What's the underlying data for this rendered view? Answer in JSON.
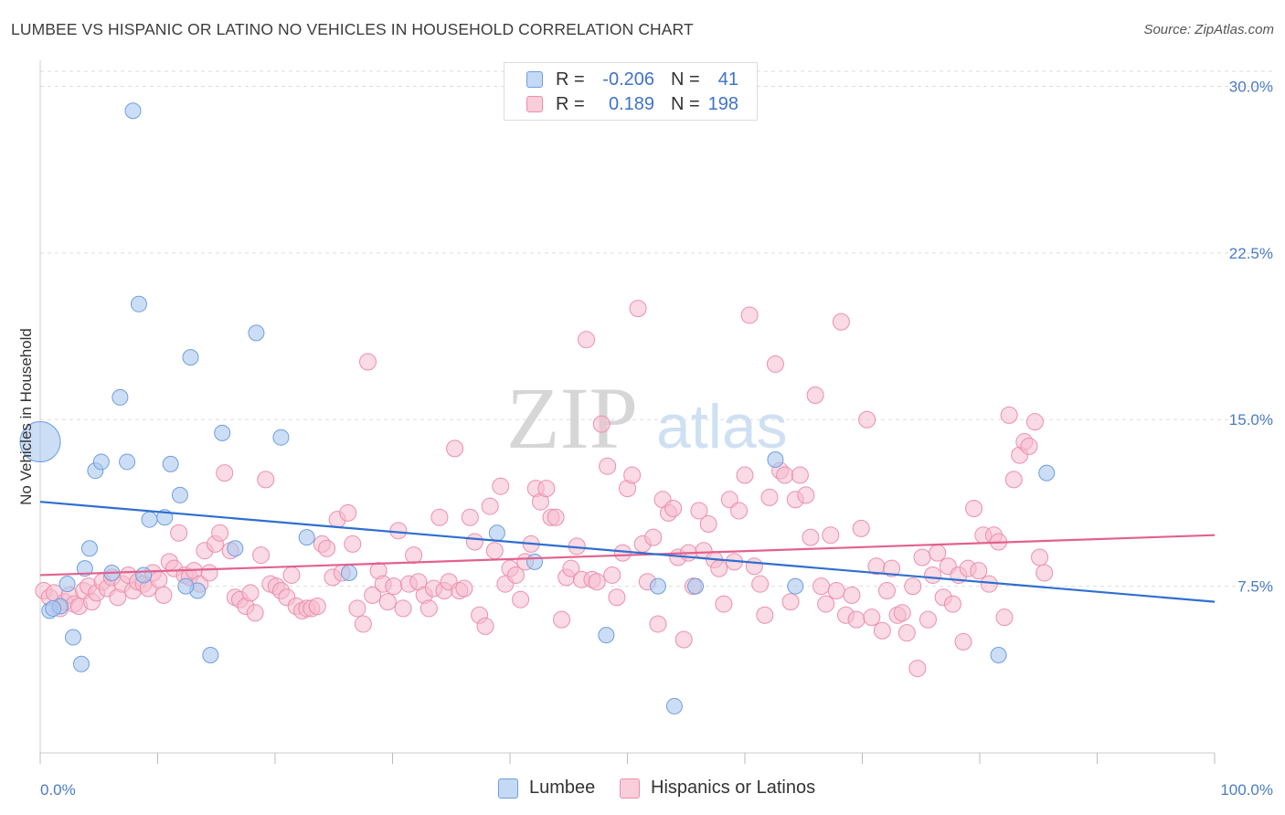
{
  "title": "LUMBEE VS HISPANIC OR LATINO NO VEHICLES IN HOUSEHOLD CORRELATION CHART",
  "source": "Source: ZipAtlas.com",
  "watermark": {
    "zip": "ZIP",
    "atlas": "atlas"
  },
  "legend": {
    "rows": [
      {
        "r_label": "R =",
        "r_value": "-0.206",
        "n_label": "N =",
        "n_value": "41"
      },
      {
        "r_label": "R =",
        "r_value": "0.189",
        "n_label": "N =",
        "n_value": "198"
      }
    ]
  },
  "bottom_legend": {
    "lumbee": "Lumbee",
    "hispanic": "Hispanics or Latinos"
  },
  "colors": {
    "lumbee_fill": "#aac8ee",
    "lumbee_stroke": "#6f9ee0",
    "lumbee_line": "#2f6fcf",
    "hispanic_fill": "#f6bccd",
    "hispanic_stroke": "#ec8fac",
    "hispanic_line": "#e2618e",
    "tick_text": "#4a7cc4",
    "grid": "#dddddd"
  },
  "chart_data": {
    "type": "scatter",
    "title": "LUMBEE VS HISPANIC OR LATINO NO VEHICLES IN HOUSEHOLD CORRELATION CHART",
    "xlabel": "",
    "ylabel": "No Vehicles in Household",
    "xlim": [
      0,
      100
    ],
    "ylim": [
      0,
      31.5
    ],
    "x_ticks": [
      "0.0%",
      "100.0%"
    ],
    "y_ticks": [
      {
        "value": 7.5,
        "label": "7.5%"
      },
      {
        "value": 15.0,
        "label": "15.0%"
      },
      {
        "value": 22.5,
        "label": "22.5%"
      },
      {
        "value": 30.0,
        "label": "30.0%"
      }
    ],
    "legend_position": "top-center",
    "grid": true,
    "series": [
      {
        "name": "Lumbee",
        "r": -0.206,
        "n": 41,
        "trend": {
          "x": [
            0,
            100
          ],
          "y": [
            11.3,
            6.8
          ]
        },
        "points": [
          [
            0,
            14.0
          ],
          [
            0.8,
            6.4
          ],
          [
            1.7,
            6.6
          ],
          [
            2.3,
            7.6
          ],
          [
            2.8,
            5.2
          ],
          [
            3.5,
            4.0
          ],
          [
            3.8,
            8.3
          ],
          [
            4.2,
            9.2
          ],
          [
            4.7,
            12.7
          ],
          [
            5.2,
            13.1
          ],
          [
            6.1,
            8.1
          ],
          [
            6.8,
            16.0
          ],
          [
            7.4,
            13.1
          ],
          [
            7.9,
            28.9
          ],
          [
            8.4,
            20.2
          ],
          [
            8.8,
            8.0
          ],
          [
            9.3,
            10.5
          ],
          [
            10.6,
            10.6
          ],
          [
            11.1,
            13.0
          ],
          [
            11.9,
            11.6
          ],
          [
            12.8,
            17.8
          ],
          [
            13.4,
            7.3
          ],
          [
            14.5,
            4.4
          ],
          [
            15.5,
            14.4
          ],
          [
            16.6,
            9.2
          ],
          [
            18.4,
            18.9
          ],
          [
            20.5,
            14.2
          ],
          [
            22.7,
            9.7
          ],
          [
            26.3,
            8.1
          ],
          [
            38.9,
            9.9
          ],
          [
            42.1,
            8.6
          ],
          [
            48.2,
            5.3
          ],
          [
            52.6,
            7.5
          ],
          [
            54.0,
            2.1
          ],
          [
            55.8,
            7.5
          ],
          [
            62.6,
            13.2
          ],
          [
            64.3,
            7.5
          ],
          [
            81.6,
            4.4
          ],
          [
            85.7,
            12.6
          ],
          [
            12.4,
            7.5
          ],
          [
            1.1,
            6.5
          ]
        ]
      },
      {
        "name": "Hispanics or Latinos",
        "r": 0.189,
        "n": 198,
        "trend": {
          "x": [
            0,
            100
          ],
          "y": [
            8.0,
            9.8
          ]
        },
        "points": [
          [
            0.3,
            7.3
          ],
          [
            0.8,
            7.0
          ],
          [
            1.2,
            7.2
          ],
          [
            1.7,
            6.5
          ],
          [
            2.1,
            6.8
          ],
          [
            2.5,
            7.1
          ],
          [
            2.9,
            6.7
          ],
          [
            3.3,
            6.6
          ],
          [
            3.7,
            7.3
          ],
          [
            4.1,
            7.5
          ],
          [
            4.4,
            6.8
          ],
          [
            4.8,
            7.2
          ],
          [
            5.3,
            7.7
          ],
          [
            5.7,
            7.4
          ],
          [
            6.1,
            7.9
          ],
          [
            6.6,
            7.0
          ],
          [
            7.0,
            7.6
          ],
          [
            7.5,
            8.0
          ],
          [
            7.9,
            7.3
          ],
          [
            8.3,
            7.7
          ],
          [
            8.8,
            7.6
          ],
          [
            9.2,
            7.4
          ],
          [
            9.6,
            8.1
          ],
          [
            10.1,
            7.8
          ],
          [
            10.5,
            7.1
          ],
          [
            11.0,
            8.6
          ],
          [
            11.4,
            8.3
          ],
          [
            11.8,
            9.9
          ],
          [
            12.3,
            8.0
          ],
          [
            12.7,
            7.9
          ],
          [
            13.1,
            8.2
          ],
          [
            13.6,
            7.6
          ],
          [
            14.0,
            9.1
          ],
          [
            14.4,
            8.1
          ],
          [
            14.9,
            9.4
          ],
          [
            15.3,
            9.9
          ],
          [
            15.7,
            12.6
          ],
          [
            16.2,
            9.1
          ],
          [
            16.6,
            7.0
          ],
          [
            17.0,
            6.9
          ],
          [
            17.5,
            6.6
          ],
          [
            17.9,
            7.2
          ],
          [
            18.3,
            6.3
          ],
          [
            18.8,
            8.9
          ],
          [
            19.2,
            12.3
          ],
          [
            19.6,
            7.6
          ],
          [
            20.1,
            7.5
          ],
          [
            20.5,
            7.3
          ],
          [
            21.0,
            7.0
          ],
          [
            21.4,
            8.0
          ],
          [
            21.8,
            6.6
          ],
          [
            22.3,
            6.4
          ],
          [
            22.7,
            6.5
          ],
          [
            23.1,
            6.5
          ],
          [
            23.6,
            6.6
          ],
          [
            24.0,
            9.4
          ],
          [
            24.4,
            9.2
          ],
          [
            24.9,
            7.9
          ],
          [
            25.3,
            10.5
          ],
          [
            25.7,
            8.1
          ],
          [
            26.2,
            10.8
          ],
          [
            26.6,
            9.4
          ],
          [
            27.0,
            6.5
          ],
          [
            27.5,
            5.8
          ],
          [
            27.9,
            17.6
          ],
          [
            28.3,
            7.1
          ],
          [
            28.8,
            8.2
          ],
          [
            29.2,
            7.6
          ],
          [
            29.6,
            6.8
          ],
          [
            30.1,
            7.5
          ],
          [
            30.5,
            10.0
          ],
          [
            30.9,
            6.5
          ],
          [
            31.4,
            7.6
          ],
          [
            31.8,
            8.9
          ],
          [
            32.2,
            7.7
          ],
          [
            32.7,
            7.1
          ],
          [
            33.1,
            6.5
          ],
          [
            33.5,
            7.4
          ],
          [
            34.0,
            10.6
          ],
          [
            34.4,
            7.3
          ],
          [
            34.8,
            7.7
          ],
          [
            35.3,
            13.7
          ],
          [
            35.7,
            7.3
          ],
          [
            36.1,
            7.4
          ],
          [
            36.6,
            10.6
          ],
          [
            37.0,
            9.5
          ],
          [
            37.4,
            6.2
          ],
          [
            37.9,
            5.7
          ],
          [
            38.3,
            11.1
          ],
          [
            38.7,
            9.1
          ],
          [
            39.2,
            12.0
          ],
          [
            39.6,
            7.6
          ],
          [
            40.0,
            8.3
          ],
          [
            40.5,
            8.0
          ],
          [
            40.9,
            6.9
          ],
          [
            41.3,
            8.6
          ],
          [
            41.8,
            9.4
          ],
          [
            42.2,
            11.9
          ],
          [
            42.6,
            11.3
          ],
          [
            43.1,
            11.9
          ],
          [
            43.5,
            10.6
          ],
          [
            43.9,
            10.6
          ],
          [
            44.4,
            6.0
          ],
          [
            44.8,
            7.9
          ],
          [
            45.2,
            8.3
          ],
          [
            45.7,
            9.3
          ],
          [
            46.1,
            7.8
          ],
          [
            46.5,
            18.6
          ],
          [
            47.0,
            7.8
          ],
          [
            47.4,
            7.7
          ],
          [
            47.8,
            14.8
          ],
          [
            48.3,
            12.9
          ],
          [
            48.7,
            8.0
          ],
          [
            49.1,
            7.0
          ],
          [
            49.6,
            9.0
          ],
          [
            50.0,
            11.9
          ],
          [
            50.4,
            12.5
          ],
          [
            50.9,
            20.0
          ],
          [
            51.3,
            9.4
          ],
          [
            51.7,
            7.7
          ],
          [
            52.2,
            9.7
          ],
          [
            52.6,
            5.8
          ],
          [
            53.0,
            11.4
          ],
          [
            53.5,
            10.8
          ],
          [
            53.9,
            11.0
          ],
          [
            54.3,
            8.8
          ],
          [
            54.8,
            5.1
          ],
          [
            55.2,
            9.0
          ],
          [
            55.6,
            7.5
          ],
          [
            56.1,
            10.9
          ],
          [
            56.5,
            9.1
          ],
          [
            56.9,
            10.3
          ],
          [
            57.4,
            8.7
          ],
          [
            57.8,
            8.3
          ],
          [
            58.2,
            6.7
          ],
          [
            58.7,
            11.4
          ],
          [
            59.1,
            8.6
          ],
          [
            59.5,
            10.9
          ],
          [
            60.0,
            12.5
          ],
          [
            60.4,
            19.7
          ],
          [
            60.8,
            8.4
          ],
          [
            61.3,
            7.6
          ],
          [
            61.7,
            6.2
          ],
          [
            62.1,
            11.5
          ],
          [
            62.6,
            17.5
          ],
          [
            63.0,
            12.7
          ],
          [
            63.4,
            12.5
          ],
          [
            63.9,
            6.8
          ],
          [
            64.3,
            11.4
          ],
          [
            64.7,
            12.5
          ],
          [
            65.2,
            11.6
          ],
          [
            65.6,
            9.7
          ],
          [
            66.0,
            16.1
          ],
          [
            66.5,
            7.5
          ],
          [
            66.9,
            6.7
          ],
          [
            67.3,
            9.8
          ],
          [
            67.8,
            7.3
          ],
          [
            68.2,
            19.4
          ],
          [
            68.6,
            6.2
          ],
          [
            69.1,
            7.1
          ],
          [
            69.5,
            6.0
          ],
          [
            69.9,
            10.1
          ],
          [
            70.4,
            15.0
          ],
          [
            70.8,
            6.1
          ],
          [
            71.2,
            8.4
          ],
          [
            71.7,
            5.5
          ],
          [
            72.1,
            7.3
          ],
          [
            72.5,
            8.3
          ],
          [
            73.0,
            6.2
          ],
          [
            73.4,
            6.3
          ],
          [
            73.8,
            5.4
          ],
          [
            74.3,
            7.5
          ],
          [
            74.7,
            3.8
          ],
          [
            75.1,
            8.8
          ],
          [
            75.6,
            6.0
          ],
          [
            76.0,
            8.0
          ],
          [
            76.4,
            9.0
          ],
          [
            76.9,
            7.0
          ],
          [
            77.3,
            8.4
          ],
          [
            77.7,
            6.7
          ],
          [
            78.2,
            8.0
          ],
          [
            78.6,
            5.0
          ],
          [
            79.0,
            8.3
          ],
          [
            79.5,
            11.0
          ],
          [
            79.9,
            8.2
          ],
          [
            80.3,
            9.8
          ],
          [
            80.8,
            7.6
          ],
          [
            81.2,
            9.8
          ],
          [
            81.6,
            9.5
          ],
          [
            82.1,
            6.1
          ],
          [
            82.5,
            15.2
          ],
          [
            82.9,
            12.3
          ],
          [
            83.4,
            13.4
          ],
          [
            83.8,
            14.0
          ],
          [
            84.2,
            13.8
          ],
          [
            84.7,
            14.9
          ],
          [
            85.1,
            8.8
          ],
          [
            85.5,
            8.1
          ]
        ]
      }
    ]
  }
}
